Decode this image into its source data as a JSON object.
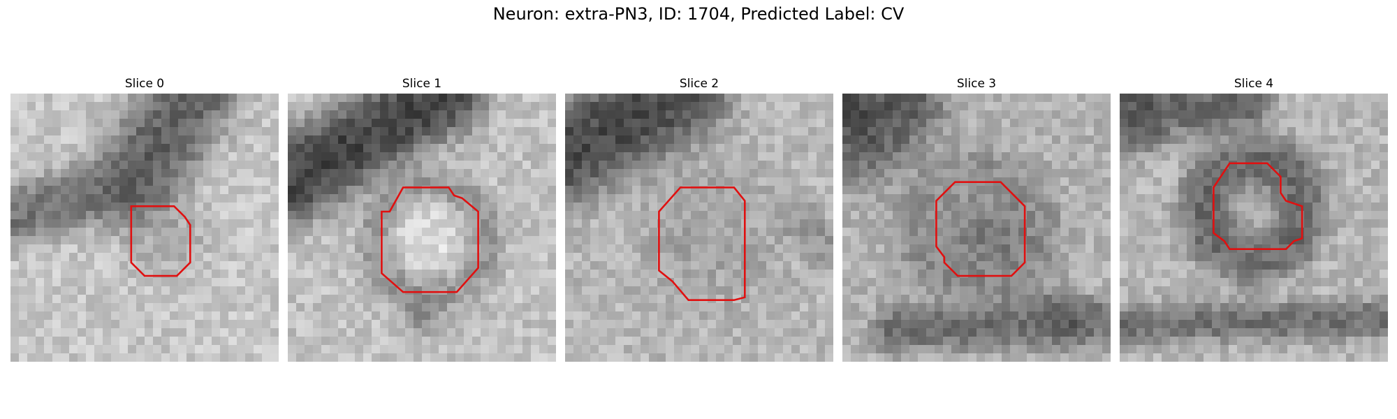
{
  "title": "Neuron: extra-PN3, ID: 1704, Predicted Label: CV",
  "contour_color": "#e01010",
  "panels": [
    {
      "label": "Slice 0",
      "background_level": 0.78,
      "structures": [
        {
          "kind": "band",
          "a": [
            0.0,
            0.46
          ],
          "b": [
            0.46,
            0.33
          ],
          "w": 0.08,
          "level": 0.35
        },
        {
          "kind": "band",
          "a": [
            0.46,
            0.33
          ],
          "b": [
            0.68,
            0.0
          ],
          "w": 0.12,
          "level": 0.25
        },
        {
          "kind": "blob",
          "c": [
            0.58,
            0.53
          ],
          "r": 0.1,
          "level": 0.62
        }
      ],
      "contour": [
        [
          0.45,
          0.42
        ],
        [
          0.51,
          0.42
        ],
        [
          0.57,
          0.42
        ],
        [
          0.61,
          0.42
        ],
        [
          0.65,
          0.46
        ],
        [
          0.67,
          0.49
        ],
        [
          0.67,
          0.56
        ],
        [
          0.67,
          0.63
        ],
        [
          0.63,
          0.67
        ],
        [
          0.62,
          0.68
        ],
        [
          0.54,
          0.68
        ],
        [
          0.5,
          0.68
        ],
        [
          0.45,
          0.63
        ],
        [
          0.45,
          0.6
        ],
        [
          0.45,
          0.46
        ]
      ]
    },
    {
      "label": "Slice 1",
      "background_level": 0.76,
      "structures": [
        {
          "kind": "band",
          "a": [
            0.0,
            0.33
          ],
          "b": [
            0.58,
            0.0
          ],
          "w": 0.11,
          "level": 0.1
        },
        {
          "kind": "ring",
          "c": [
            0.53,
            0.55
          ],
          "r": 0.2,
          "w": 0.05,
          "level": 0.5
        },
        {
          "kind": "blob",
          "c": [
            0.52,
            0.53
          ],
          "r": 0.13,
          "level": 0.9
        },
        {
          "kind": "blob",
          "c": [
            0.5,
            0.82
          ],
          "r": 0.05,
          "level": 0.45
        }
      ],
      "contour": [
        [
          0.38,
          0.44
        ],
        [
          0.43,
          0.35
        ],
        [
          0.51,
          0.35
        ],
        [
          0.6,
          0.35
        ],
        [
          0.62,
          0.38
        ],
        [
          0.65,
          0.39
        ],
        [
          0.71,
          0.44
        ],
        [
          0.71,
          0.65
        ],
        [
          0.63,
          0.74
        ],
        [
          0.54,
          0.74
        ],
        [
          0.43,
          0.74
        ],
        [
          0.35,
          0.67
        ],
        [
          0.35,
          0.59
        ],
        [
          0.35,
          0.44
        ]
      ]
    },
    {
      "label": "Slice 2",
      "background_level": 0.72,
      "structures": [
        {
          "kind": "band",
          "a": [
            0.0,
            0.22
          ],
          "b": [
            0.42,
            0.0
          ],
          "w": 0.13,
          "level": 0.15
        },
        {
          "kind": "blob",
          "c": [
            0.55,
            0.52
          ],
          "r": 0.18,
          "level": 0.6
        },
        {
          "kind": "band",
          "a": [
            0.85,
            0.45
          ],
          "b": [
            1.0,
            0.6
          ],
          "w": 0.05,
          "level": 0.55
        }
      ],
      "contour": [
        [
          0.35,
          0.44
        ],
        [
          0.43,
          0.35
        ],
        [
          0.55,
          0.35
        ],
        [
          0.63,
          0.35
        ],
        [
          0.67,
          0.4
        ],
        [
          0.67,
          0.5
        ],
        [
          0.67,
          0.64
        ],
        [
          0.67,
          0.76
        ],
        [
          0.63,
          0.77
        ],
        [
          0.49,
          0.77
        ],
        [
          0.46,
          0.77
        ],
        [
          0.4,
          0.7
        ],
        [
          0.35,
          0.66
        ],
        [
          0.35,
          0.54
        ]
      ]
    },
    {
      "label": "Slice 3",
      "background_level": 0.7,
      "structures": [
        {
          "kind": "blob",
          "c": [
            0.05,
            0.08
          ],
          "r": 0.16,
          "level": 0.15
        },
        {
          "kind": "blob",
          "c": [
            0.26,
            0.04
          ],
          "r": 0.08,
          "level": 0.25
        },
        {
          "kind": "ring",
          "c": [
            0.5,
            0.5
          ],
          "r": 0.22,
          "w": 0.06,
          "level": 0.52
        },
        {
          "kind": "blob",
          "c": [
            0.55,
            0.56
          ],
          "r": 0.15,
          "level": 0.4
        },
        {
          "kind": "band",
          "a": [
            0.2,
            0.88
          ],
          "b": [
            1.0,
            0.85
          ],
          "w": 0.06,
          "level": 0.35
        },
        {
          "kind": "blob",
          "c": [
            0.82,
            0.83
          ],
          "r": 0.06,
          "level": 0.2
        }
      ],
      "contour": [
        [
          0.35,
          0.4
        ],
        [
          0.42,
          0.33
        ],
        [
          0.52,
          0.33
        ],
        [
          0.59,
          0.33
        ],
        [
          0.66,
          0.4
        ],
        [
          0.68,
          0.42
        ],
        [
          0.68,
          0.57
        ],
        [
          0.68,
          0.63
        ],
        [
          0.64,
          0.67
        ],
        [
          0.63,
          0.68
        ],
        [
          0.54,
          0.68
        ],
        [
          0.43,
          0.68
        ],
        [
          0.38,
          0.63
        ],
        [
          0.38,
          0.61
        ],
        [
          0.35,
          0.57
        ]
      ]
    },
    {
      "label": "Slice 4",
      "background_level": 0.72,
      "structures": [
        {
          "kind": "band",
          "a": [
            0.0,
            0.06
          ],
          "b": [
            0.45,
            0.03
          ],
          "w": 0.08,
          "level": 0.3
        },
        {
          "kind": "blob",
          "c": [
            0.05,
            0.1
          ],
          "r": 0.08,
          "level": 0.2
        },
        {
          "kind": "ring",
          "c": [
            0.5,
            0.43
          ],
          "r": 0.18,
          "w": 0.07,
          "level": 0.3
        },
        {
          "kind": "band",
          "a": [
            0.0,
            0.86
          ],
          "b": [
            1.0,
            0.84
          ],
          "w": 0.05,
          "level": 0.35
        }
      ],
      "contour": [
        [
          0.35,
          0.35
        ],
        [
          0.41,
          0.26
        ],
        [
          0.49,
          0.26
        ],
        [
          0.55,
          0.26
        ],
        [
          0.6,
          0.31
        ],
        [
          0.6,
          0.37
        ],
        [
          0.62,
          0.4
        ],
        [
          0.68,
          0.42
        ],
        [
          0.68,
          0.54
        ],
        [
          0.65,
          0.55
        ],
        [
          0.62,
          0.58
        ],
        [
          0.41,
          0.58
        ],
        [
          0.39,
          0.55
        ],
        [
          0.35,
          0.52
        ]
      ]
    }
  ]
}
